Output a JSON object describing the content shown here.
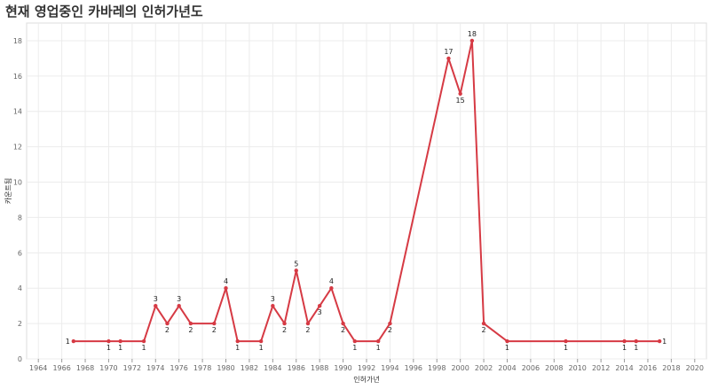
{
  "title": "현재 영업중인 카바레의 인허가년도",
  "chart_data": {
    "type": "line",
    "title": "현재 영업중인 카바레의 인허가년도",
    "xlabel": "인허가년",
    "ylabel": "카운트됨",
    "xlim": [
      1963,
      2021
    ],
    "ylim": [
      0,
      19
    ],
    "x_ticks": [
      "1964",
      "1966",
      "1968",
      "1970",
      "1972",
      "1974",
      "1976",
      "1978",
      "1980",
      "1982",
      "1984",
      "1986",
      "1988",
      "1990",
      "1992",
      "1994",
      "1996",
      "1998",
      "2000",
      "2002",
      "2004",
      "2006",
      "2008",
      "2010",
      "2012",
      "2014",
      "2016",
      "2018",
      "2020"
    ],
    "y_ticks": [
      "0",
      "2",
      "4",
      "6",
      "8",
      "10",
      "12",
      "14",
      "16",
      "18"
    ],
    "grid": true,
    "series_color": "#d63a44",
    "x": [
      1967,
      1970,
      1971,
      1973,
      1974,
      1975,
      1976,
      1977,
      1979,
      1980,
      1981,
      1983,
      1984,
      1985,
      1986,
      1987,
      1988,
      1989,
      1990,
      1991,
      1993,
      1994,
      1999,
      2000,
      2001,
      2002,
      2004,
      2009,
      2014,
      2015,
      2017
    ],
    "y": [
      1,
      1,
      1,
      1,
      3,
      2,
      3,
      2,
      2,
      4,
      1,
      1,
      3,
      2,
      5,
      2,
      3,
      4,
      2,
      1,
      1,
      2,
      17,
      15,
      18,
      2,
      1,
      1,
      1,
      1,
      1
    ]
  }
}
